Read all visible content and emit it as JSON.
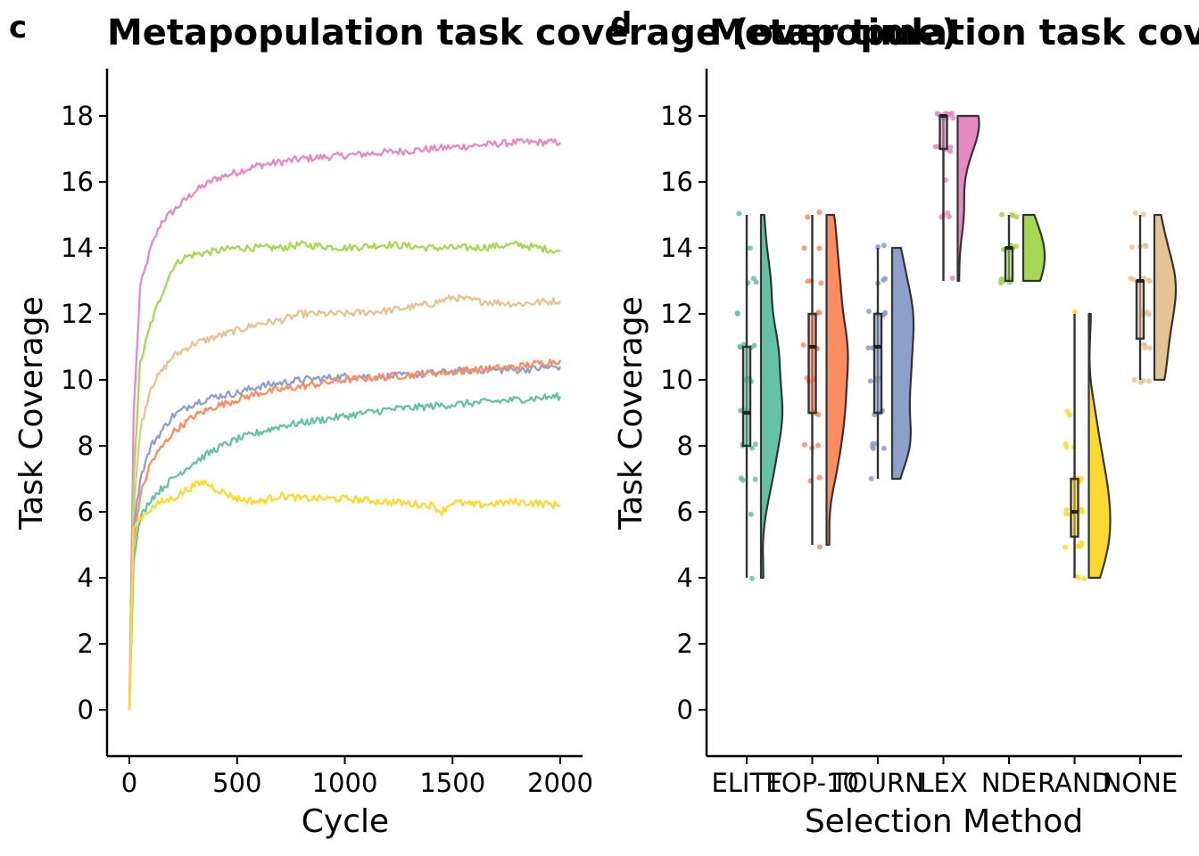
{
  "panels": {
    "left_letter": "c",
    "right_letter": "d"
  },
  "colors": {
    "ELITE": "#66c2a5",
    "TOP-10": "#fc8d62",
    "TOURN": "#8da0cb",
    "LEX": "#e78ac3",
    "NDE": "#a6d854",
    "RAND": "#ffd92f",
    "NONE": "#e5c494"
  },
  "chart_data": [
    {
      "type": "line",
      "title": "Metapopulation task coverage (over time)",
      "xlabel": "Cycle",
      "ylabel": "Task Coverage",
      "xlim": [
        -100,
        2100
      ],
      "ylim": [
        -1.4,
        19.4
      ],
      "xticks": [
        0,
        500,
        1000,
        1500,
        2000
      ],
      "yticks": [
        0,
        2,
        4,
        6,
        8,
        10,
        12,
        14,
        16,
        18
      ],
      "legend": "none",
      "grid": false,
      "series": [
        {
          "key": "LEX",
          "x": [
            0,
            20,
            50,
            100,
            150,
            200,
            300,
            400,
            500,
            600,
            700,
            800,
            1000,
            1200,
            1400,
            1600,
            1800,
            2000
          ],
          "values": [
            0,
            9,
            12.8,
            14.0,
            14.8,
            15.1,
            15.7,
            16.1,
            16.3,
            16.5,
            16.6,
            16.7,
            16.8,
            16.9,
            17.0,
            17.1,
            17.2,
            17.2
          ]
        },
        {
          "key": "NDE",
          "x": [
            0,
            20,
            50,
            100,
            150,
            200,
            250,
            300,
            400,
            500,
            600,
            700,
            800,
            1000,
            1200,
            1400,
            1600,
            1800,
            2000
          ],
          "values": [
            0,
            7,
            10.5,
            11.7,
            12.6,
            13.4,
            13.7,
            13.8,
            13.9,
            14.0,
            14.0,
            14.0,
            14.1,
            14.0,
            14.1,
            14.0,
            14.0,
            14.1,
            13.9
          ]
        },
        {
          "key": "NONE",
          "x": [
            0,
            20,
            50,
            100,
            200,
            300,
            400,
            500,
            600,
            700,
            800,
            1000,
            1200,
            1400,
            1500,
            1600,
            1800,
            2000
          ],
          "values": [
            0,
            6,
            8.5,
            9.8,
            10.7,
            11.1,
            11.3,
            11.5,
            11.7,
            11.8,
            12.0,
            12.0,
            12.1,
            12.3,
            12.5,
            12.4,
            12.3,
            12.4
          ]
        },
        {
          "key": "TOURN",
          "x": [
            0,
            20,
            50,
            100,
            200,
            300,
            400,
            500,
            600,
            700,
            800,
            1000,
            1200,
            1400,
            1600,
            1800,
            2000
          ],
          "values": [
            0,
            5.5,
            7.0,
            8.0,
            8.9,
            9.3,
            9.5,
            9.6,
            9.8,
            9.9,
            10.0,
            10.1,
            10.1,
            10.2,
            10.3,
            10.3,
            10.4
          ]
        },
        {
          "key": "TOP-10",
          "x": [
            0,
            20,
            50,
            100,
            200,
            300,
            400,
            500,
            600,
            700,
            800,
            1000,
            1200,
            1400,
            1600,
            1800,
            2000
          ],
          "values": [
            0,
            5.0,
            6.5,
            7.5,
            8.4,
            8.9,
            9.2,
            9.4,
            9.6,
            9.7,
            9.8,
            10.0,
            10.1,
            10.2,
            10.3,
            10.4,
            10.6
          ]
        },
        {
          "key": "ELITE",
          "x": [
            0,
            20,
            50,
            100,
            200,
            300,
            400,
            500,
            600,
            700,
            800,
            1000,
            1200,
            1400,
            1600,
            1800,
            2000
          ],
          "values": [
            0,
            4.5,
            5.8,
            6.4,
            7.0,
            7.5,
            7.9,
            8.2,
            8.4,
            8.6,
            8.7,
            8.9,
            9.1,
            9.2,
            9.3,
            9.4,
            9.5
          ]
        },
        {
          "key": "RAND",
          "x": [
            0,
            20,
            50,
            100,
            150,
            200,
            300,
            350,
            400,
            500,
            600,
            700,
            800,
            1000,
            1200,
            1400,
            1450,
            1500,
            1600,
            1800,
            2000
          ],
          "values": [
            0,
            5.5,
            5.8,
            6.1,
            6.3,
            6.4,
            6.8,
            6.9,
            6.7,
            6.4,
            6.3,
            6.5,
            6.4,
            6.4,
            6.3,
            6.2,
            6.0,
            6.3,
            6.2,
            6.3,
            6.2
          ]
        }
      ]
    },
    {
      "type": "violin",
      "title": "Metapopulation task coverage (end)",
      "xlabel": "Selection Method",
      "ylabel": "Task Coverage",
      "ylim": [
        -1.4,
        19.4
      ],
      "yticks": [
        0,
        2,
        4,
        6,
        8,
        10,
        12,
        14,
        16,
        18
      ],
      "categories": [
        "ELITE",
        "TOP-10",
        "TOURN",
        "LEX",
        "NDE",
        "RAND",
        "NONE"
      ],
      "legend": "none",
      "grid": false,
      "groups": [
        {
          "key": "ELITE",
          "min": 4,
          "q1": 8,
          "median": 9,
          "q3": 11,
          "max": 15,
          "points": [
            15,
            14,
            13,
            13,
            13,
            12,
            12,
            11,
            11,
            11,
            11,
            11,
            10,
            10,
            10,
            10,
            9,
            9,
            9,
            9,
            9,
            9,
            8,
            8,
            8,
            8,
            7,
            7,
            7,
            6,
            4
          ]
        },
        {
          "key": "TOP-10",
          "min": 5,
          "q1": 9,
          "median": 11,
          "q3": 12,
          "max": 15,
          "points": [
            15,
            15,
            14,
            14,
            13,
            13,
            13,
            12,
            12,
            12,
            11,
            11,
            11,
            11,
            11,
            10,
            10,
            10,
            10,
            9,
            9,
            9,
            9,
            8,
            8,
            8,
            7,
            7,
            5
          ]
        },
        {
          "key": "TOURN",
          "min": 7,
          "q1": 9,
          "median": 11,
          "q3": 12,
          "max": 14,
          "points": [
            14,
            14,
            13,
            13,
            13,
            12,
            12,
            12,
            12,
            12,
            11,
            11,
            11,
            11,
            10,
            10,
            10,
            10,
            9,
            9,
            9,
            8,
            8,
            8,
            8,
            8,
            7
          ]
        },
        {
          "key": "LEX",
          "min": 13,
          "q1": 17,
          "median": 18,
          "q3": 18,
          "max": 18,
          "points": [
            18,
            18,
            18,
            18,
            18,
            18,
            18,
            18,
            18,
            18,
            18,
            18,
            18,
            17,
            17,
            17,
            17,
            17,
            17,
            16,
            15,
            15,
            15,
            15,
            13
          ]
        },
        {
          "key": "NDE",
          "min": 13,
          "q1": 13,
          "median": 14,
          "q3": 14,
          "max": 15,
          "points": [
            15,
            15,
            15,
            15,
            14,
            14,
            14,
            14,
            14,
            14,
            14,
            14,
            14,
            14,
            14,
            14,
            13,
            13,
            13,
            13,
            13,
            13,
            13,
            13,
            13
          ]
        },
        {
          "key": "RAND",
          "min": 4,
          "q1": 5.25,
          "median": 6,
          "q3": 7,
          "max": 12,
          "points": [
            12,
            9,
            9,
            8,
            8,
            8,
            7,
            7,
            7,
            7,
            7,
            6,
            6,
            6,
            6,
            6,
            6,
            5,
            5,
            5,
            5,
            5,
            5,
            4,
            4,
            4
          ]
        },
        {
          "key": "NONE",
          "min": 10,
          "q1": 11.25,
          "median": 13,
          "q3": 13,
          "max": 15,
          "points": [
            15,
            15,
            14,
            14,
            14,
            14,
            13,
            13,
            13,
            13,
            13,
            13,
            13,
            13,
            12,
            12,
            12,
            12,
            12,
            12,
            11,
            11,
            11,
            11,
            10,
            10,
            10,
            10
          ]
        }
      ]
    }
  ]
}
